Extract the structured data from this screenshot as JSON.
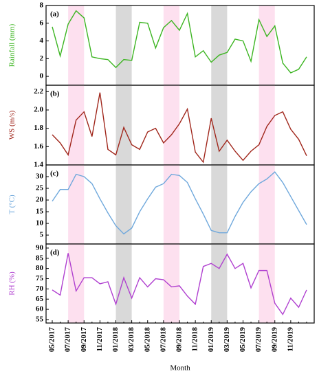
{
  "chart_data": [
    {
      "type": "line",
      "panel_label": "(a)",
      "ylabel": "Rainfall (mm)",
      "color": "#3cb521",
      "ylim": [
        -1,
        8
      ],
      "yticks": [
        0,
        2,
        4,
        6,
        8
      ],
      "values": [
        5.6,
        2.3,
        5.9,
        7.4,
        6.6,
        2.2,
        2.0,
        1.9,
        1.0,
        1.9,
        1.8,
        6.1,
        6.0,
        3.2,
        5.5,
        6.3,
        5.2,
        7.1,
        2.2,
        2.9,
        1.6,
        2.4,
        2.7,
        4.2,
        4.0,
        1.7,
        6.4,
        4.5,
        5.7,
        1.5,
        0.4,
        0.8,
        2.2
      ]
    },
    {
      "type": "line",
      "panel_label": "(b)",
      "ylabel": "WS (m/s)",
      "color": "#a0261b",
      "ylim": [
        1.4,
        2.27
      ],
      "yticks": [
        1.4,
        1.6,
        1.8,
        {
          "value": 2,
          "label": "2.0"
        },
        2.2
      ],
      "values": [
        1.73,
        1.64,
        1.51,
        1.89,
        1.98,
        1.71,
        2.19,
        1.57,
        1.51,
        1.81,
        1.62,
        1.57,
        1.76,
        1.8,
        1.64,
        1.73,
        1.85,
        2.01,
        1.54,
        1.43,
        1.91,
        1.55,
        1.67,
        1.55,
        1.45,
        1.55,
        1.62,
        1.82,
        1.94,
        1.98,
        1.79,
        1.68,
        1.5
      ]
    },
    {
      "type": "line",
      "panel_label": "(c)",
      "ylabel": "T (°C)",
      "color": "#6fa8dc",
      "ylim": [
        1.2,
        35
      ],
      "yticks": [
        5,
        10,
        15,
        20,
        25,
        30
      ],
      "values": [
        19.5,
        24.5,
        24.5,
        31,
        30,
        27,
        20.5,
        14.5,
        9,
        5.5,
        8,
        15,
        20.5,
        25.5,
        27,
        31,
        30.5,
        27.5,
        20.5,
        14,
        7,
        6,
        6,
        13,
        19,
        23.5,
        27,
        29,
        32,
        27.5,
        21.5,
        15.5,
        9.5
      ]
    },
    {
      "type": "line",
      "panel_label": "(d)",
      "ylabel": "RH (%)",
      "color": "#b040d0",
      "ylim": [
        53.3,
        92
      ],
      "yticks": [
        55,
        60,
        65,
        70,
        75,
        80,
        85,
        90
      ],
      "values": [
        69.5,
        67,
        87.5,
        69,
        75.5,
        75.5,
        72.5,
        73.5,
        62.5,
        75.5,
        65.5,
        75.5,
        71,
        75,
        74.5,
        71,
        71.5,
        66.5,
        62.5,
        81,
        82.5,
        80,
        87,
        80,
        82.5,
        70.5,
        79,
        79,
        63,
        57.5,
        65.5,
        61,
        69.5
      ],
      "xlabel": "Month",
      "categories": [
        "05/2017",
        null,
        "07/2017",
        null,
        "09/2017",
        null,
        "11/2017",
        null,
        "01/2018",
        null,
        "03/2018",
        null,
        "05/2018",
        null,
        "07/2018",
        null,
        "09/2018",
        null,
        "11/2018",
        null,
        "01/2019",
        null,
        "03/2019",
        null,
        "05/2019",
        null,
        "07/2019",
        null,
        "09/2019",
        null,
        "11/2019",
        null,
        null
      ],
      "shaded_ranges": [
        {
          "start": 2,
          "end": 4,
          "color": "#fde0ef"
        },
        {
          "start": 8,
          "end": 10,
          "color": "#d9d9d9"
        },
        {
          "start": 14,
          "end": 16,
          "color": "#fde0ef"
        },
        {
          "start": 20,
          "end": 22,
          "color": "#d9d9d9"
        },
        {
          "start": 26,
          "end": 28,
          "color": "#fde0ef"
        }
      ]
    }
  ]
}
